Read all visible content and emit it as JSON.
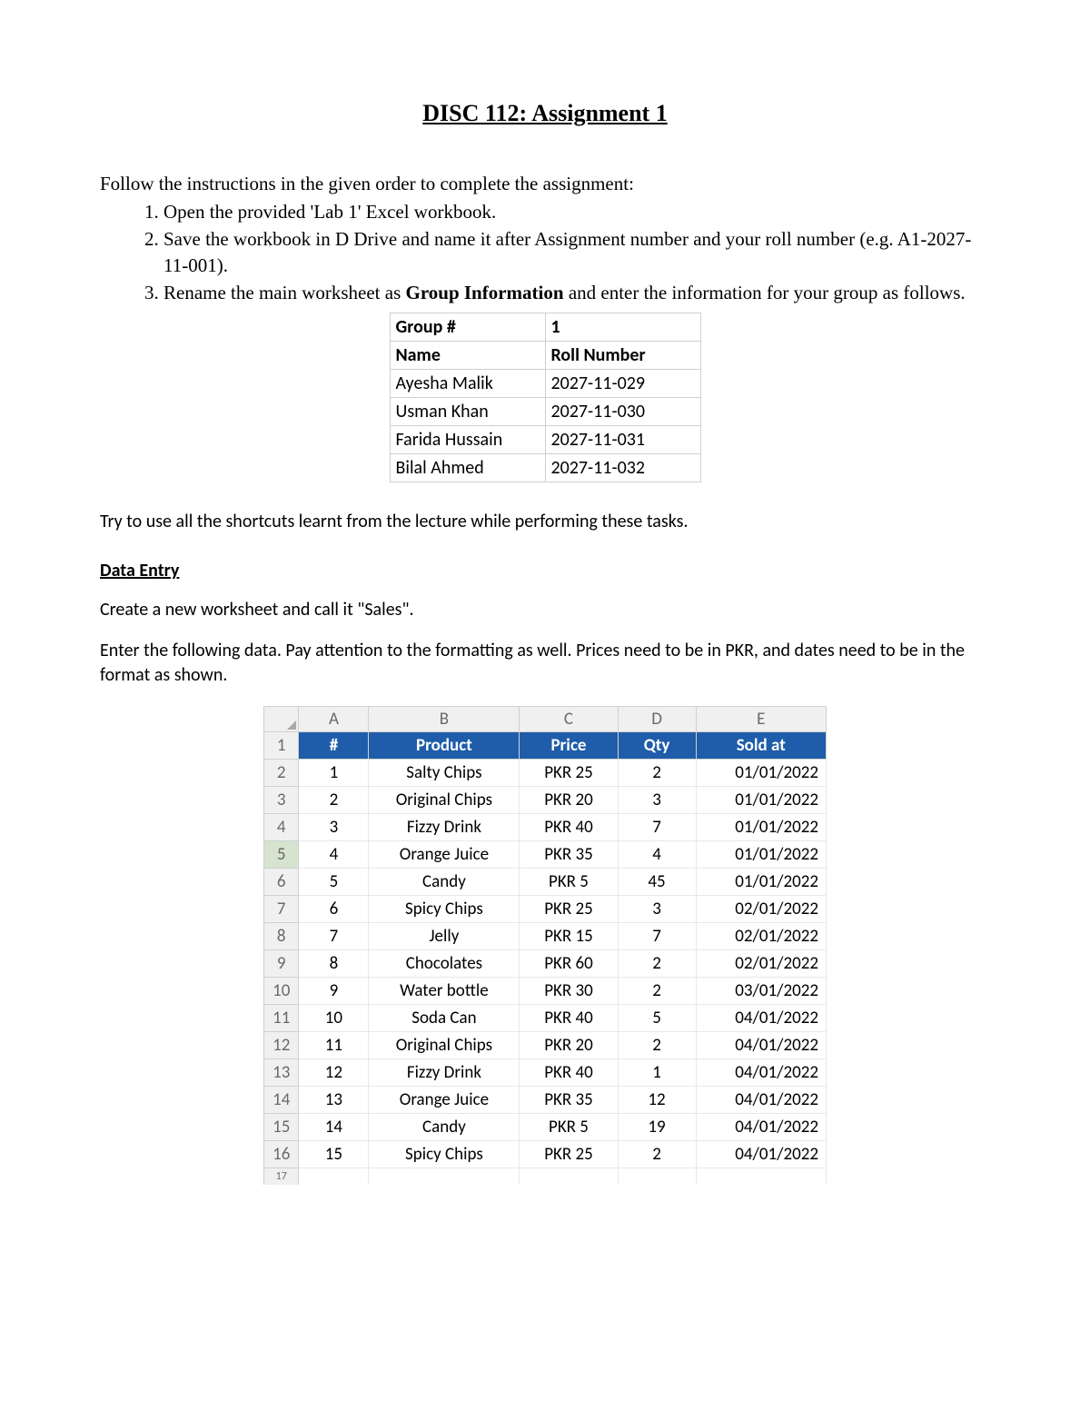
{
  "title": "DISC 112: Assignment 1",
  "intro": "Follow the instructions in the given order to complete the assignment:",
  "steps": {
    "s1": "Open the provided 'Lab 1' Excel workbook.",
    "s2": "Save the workbook in D Drive and name it after Assignment number and your roll number (e.g. A1-2027-11-001).",
    "s3a": "Rename the main worksheet as ",
    "s3b": "Group Information",
    "s3c": " and enter the information for your group as follows."
  },
  "group_table": {
    "r0c0": "Group #",
    "r0c1": "1",
    "r1c0": "Name",
    "r1c1": "Roll Number",
    "r2c0": "Ayesha Malik",
    "r2c1": "2027-11-029",
    "r3c0": "Usman Khan",
    "r3c1": "2027-11-030",
    "r4c0": "Farida Hussain",
    "r4c1": "2027-11-031",
    "r5c0": "Bilal Ahmed",
    "r5c1": "2027-11-032"
  },
  "note1": "Try to use all the shortcuts learnt from the lecture while performing these tasks.",
  "section_heading": "Data Entry",
  "note2": "Create a new worksheet and call it \"Sales\".",
  "note3": "Enter the following data. Pay attention to the formatting as well. Prices need to be in PKR, and dates need to be in the format as shown.",
  "excel": {
    "col_letters": {
      "A": "A",
      "B": "B",
      "C": "C",
      "D": "D",
      "E": "E"
    },
    "header": {
      "A": "#",
      "B": "Product",
      "C": "Price",
      "D": "Qty",
      "E": "Sold at"
    },
    "header_bg": "#1f5daa",
    "header_fg": "#ffffff",
    "rows": [
      {
        "n": "1",
        "A": "1",
        "B": "Salty Chips",
        "C": "PKR 25",
        "D": "2",
        "E": "01/01/2022"
      },
      {
        "n": "2",
        "A": "2",
        "B": "Original Chips",
        "C": "PKR 20",
        "D": "3",
        "E": "01/01/2022"
      },
      {
        "n": "3",
        "A": "3",
        "B": "Fizzy Drink",
        "C": "PKR 40",
        "D": "7",
        "E": "01/01/2022"
      },
      {
        "n": "4",
        "A": "4",
        "B": "Orange Juice",
        "C": "PKR 35",
        "D": "4",
        "E": "01/01/2022"
      },
      {
        "n": "5",
        "A": "5",
        "B": "Candy",
        "C": "PKR 5",
        "D": "45",
        "E": "01/01/2022"
      },
      {
        "n": "6",
        "A": "6",
        "B": "Spicy Chips",
        "C": "PKR 25",
        "D": "3",
        "E": "02/01/2022"
      },
      {
        "n": "7",
        "A": "7",
        "B": "Jelly",
        "C": "PKR 15",
        "D": "7",
        "E": "02/01/2022"
      },
      {
        "n": "8",
        "A": "8",
        "B": "Chocolates",
        "C": "PKR 60",
        "D": "2",
        "E": "02/01/2022"
      },
      {
        "n": "9",
        "A": "9",
        "B": "Water bottle",
        "C": "PKR 30",
        "D": "2",
        "E": "03/01/2022"
      },
      {
        "n": "10",
        "A": "10",
        "B": "Soda Can",
        "C": "PKR 40",
        "D": "5",
        "E": "04/01/2022"
      },
      {
        "n": "11",
        "A": "11",
        "B": "Original Chips",
        "C": "PKR 20",
        "D": "2",
        "E": "04/01/2022"
      },
      {
        "n": "12",
        "A": "12",
        "B": "Fizzy Drink",
        "C": "PKR 40",
        "D": "1",
        "E": "04/01/2022"
      },
      {
        "n": "13",
        "A": "13",
        "B": "Orange Juice",
        "C": "PKR 35",
        "D": "12",
        "E": "04/01/2022"
      },
      {
        "n": "14",
        "A": "14",
        "B": "Candy",
        "C": "PKR 5",
        "D": "19",
        "E": "04/01/2022"
      },
      {
        "n": "15",
        "A": "15",
        "B": "Spicy Chips",
        "C": "PKR 25",
        "D": "2",
        "E": "04/01/2022"
      }
    ],
    "row_labels": [
      "1",
      "2",
      "3",
      "4",
      "5",
      "6",
      "7",
      "8",
      "9",
      "10",
      "11",
      "12",
      "13",
      "14",
      "15",
      "16",
      "17"
    ],
    "selected_row_label": "5"
  }
}
